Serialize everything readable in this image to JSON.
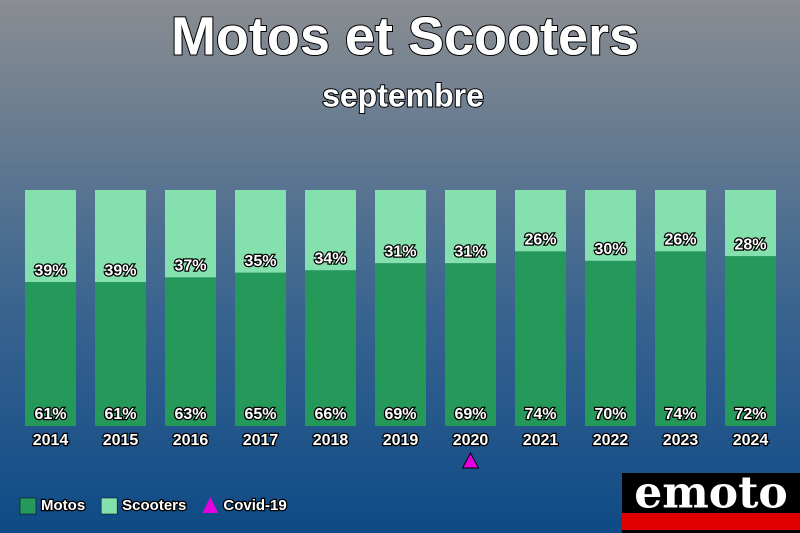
{
  "chart_data": {
    "type": "stacked_bar",
    "title": "Motos et Scooters",
    "subtitle": "septembre",
    "categories": [
      "2014",
      "2015",
      "2016",
      "2017",
      "2018",
      "2019",
      "2020",
      "2021",
      "2022",
      "2023",
      "2024"
    ],
    "series": [
      {
        "name": "Motos",
        "color": "#25995a",
        "values": [
          61,
          61,
          63,
          65,
          66,
          69,
          69,
          74,
          70,
          74,
          72
        ],
        "value_labels": [
          "61%",
          "61%",
          "63%",
          "65%",
          "66%",
          "69%",
          "69%",
          "74%",
          "70%",
          "74%",
          "72%"
        ]
      },
      {
        "name": "Scooters",
        "color": "#84e0ac",
        "values": [
          39,
          39,
          37,
          35,
          34,
          31,
          31,
          26,
          30,
          26,
          28
        ],
        "value_labels": [
          "39%",
          "39%",
          "37%",
          "35%",
          "34%",
          "31%",
          "31%",
          "26%",
          "30%",
          "26%",
          "28%"
        ]
      }
    ],
    "annotations": [
      {
        "label": "Covid-19",
        "category": "2020",
        "color": "#e000e0"
      }
    ],
    "logo": "emoto"
  }
}
